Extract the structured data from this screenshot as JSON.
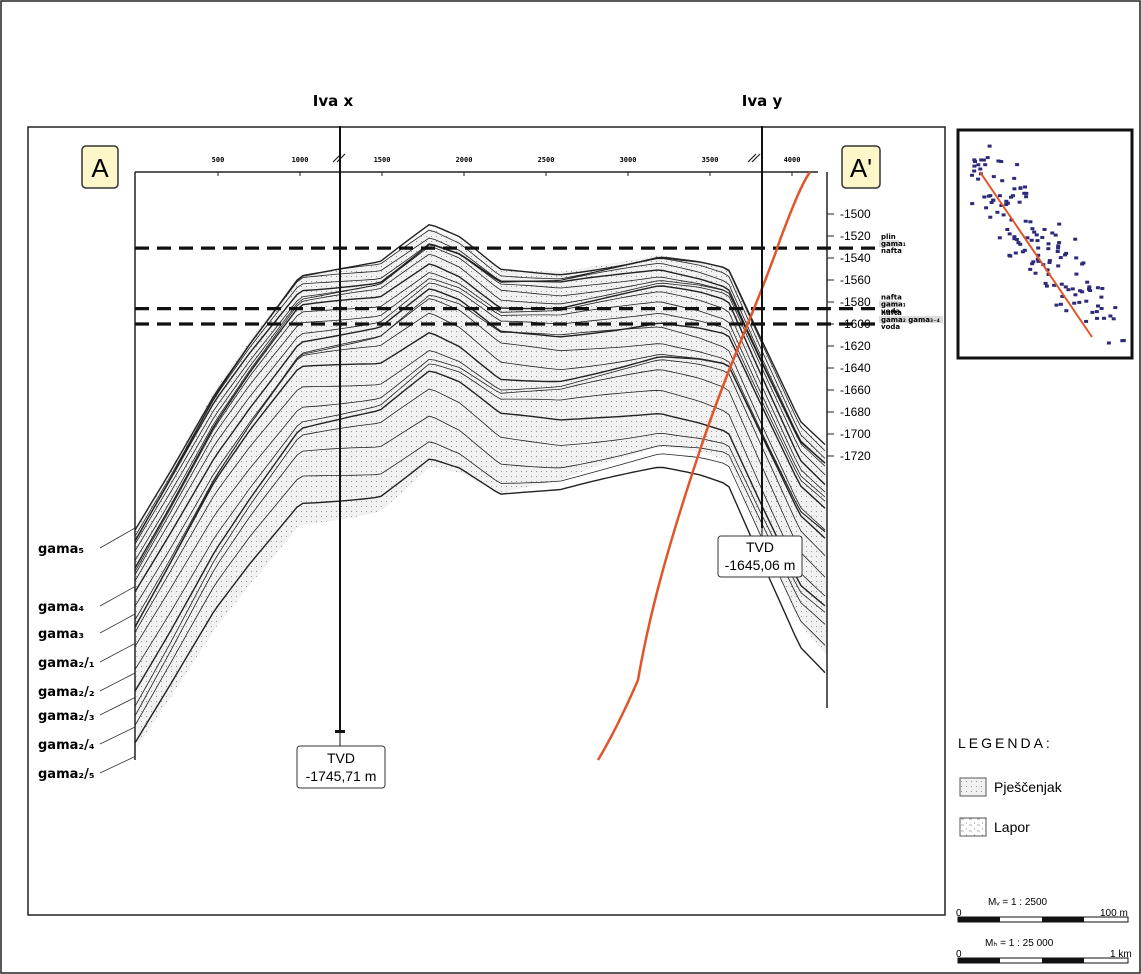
{
  "section": {
    "label_left": "A",
    "label_right": "A'",
    "x_ticks": [
      {
        "label": "500",
        "x": 500
      },
      {
        "label": "1000",
        "x": 1000
      },
      {
        "label": "1500",
        "x": 1500
      },
      {
        "label": "2000",
        "x": 2000
      },
      {
        "label": "2500",
        "x": 2500
      },
      {
        "label": "3000",
        "x": 3000
      },
      {
        "label": "3500",
        "x": 3500
      },
      {
        "label": "4000",
        "x": 4000
      }
    ],
    "y_ticks": [
      {
        "label": "-1500",
        "y": -1500
      },
      {
        "label": "-1520",
        "y": -1520
      },
      {
        "label": "-1540",
        "y": -1540
      },
      {
        "label": "-1560",
        "y": -1560
      },
      {
        "label": "-1580",
        "y": -1580
      },
      {
        "label": "-1600",
        "y": -1600
      },
      {
        "label": "-1620",
        "y": -1620
      },
      {
        "label": "-1640",
        "y": -1640
      },
      {
        "label": "-1660",
        "y": -1660
      },
      {
        "label": "-1680",
        "y": -1680
      },
      {
        "label": "-1700",
        "y": -1700
      },
      {
        "label": "-1720",
        "y": -1720
      }
    ]
  },
  "wells": [
    {
      "name": "Iva x",
      "x": 1240,
      "tvd_label": "TVD",
      "tvd_value": "-1745,71 m"
    },
    {
      "name": "Iva y",
      "x": 3790,
      "tvd_label": "TVD",
      "tvd_value": "-1645,06 m"
    }
  ],
  "contacts": [
    {
      "depth": -1531,
      "labels": [
        "plin",
        "gama₁",
        "nafta"
      ]
    },
    {
      "depth": -1586,
      "labels": [
        "nafta",
        "gama₁",
        "voda"
      ]
    },
    {
      "depth": -1600,
      "labels": [
        "nafta",
        "gama₂ gama₃₋₄",
        "voda"
      ]
    }
  ],
  "layer_names": [
    "gama₅",
    "gama₄",
    "gama₃",
    "gama₂/₁",
    "gama₂/₂",
    "gama₂/₃",
    "gama₂/₄",
    "gama₂/₅"
  ],
  "legend": {
    "title": "LEGENDA:",
    "items": [
      {
        "label": "Pješčenjak",
        "pattern": "sandstone"
      },
      {
        "label": "Lapor",
        "pattern": "marl"
      }
    ]
  },
  "scales": [
    {
      "label": "Mᵥ = 1 : 2500",
      "left": "0",
      "right": "100 m"
    },
    {
      "label": "Mₕ = 1 : 25 000",
      "left": "0",
      "right": "1 km"
    }
  ],
  "colors": {
    "line": "#111111",
    "section_trace": "#e0562b",
    "label_box": "#fdf6c8",
    "map_points": "#2d2a7a",
    "sand_fill": "#ededed"
  }
}
